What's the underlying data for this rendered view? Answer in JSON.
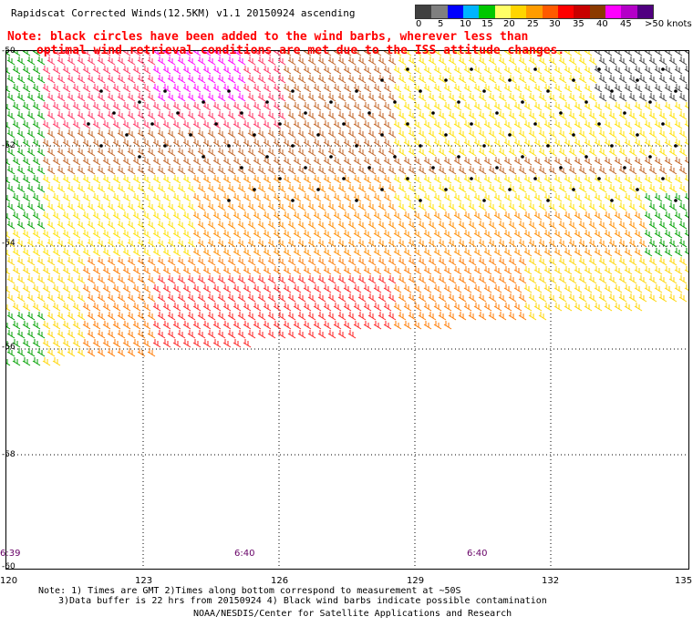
{
  "title": "Rapidscat Corrected Winds(12.5KM) v1.1 20150924 ascending",
  "note": {
    "line1": "Note: black circles have been added to the wind barbs, wherever less than",
    "line2": "optimal wind retrieval conditions are met due to the ISS attitude changes."
  },
  "legend": {
    "colors": [
      "#404040",
      "#7f7f7f",
      "#0000ff",
      "#00b4ff",
      "#00c800",
      "#ffff66",
      "#ffd500",
      "#ff9c00",
      "#ff5a00",
      "#ff0000",
      "#c80000",
      "#8b3a00",
      "#ff00ff",
      "#b400c8",
      "#500080"
    ],
    "labels": [
      "0",
      "5",
      "10",
      "15",
      "20",
      "25",
      "30",
      "35",
      "40",
      "45",
      ">50 knots"
    ]
  },
  "map": {
    "lat_labels": [
      "-50",
      "-52",
      "-54",
      "-56",
      "-58",
      "-60"
    ],
    "lon_labels": [
      "120",
      "123",
      "126",
      "129",
      "132",
      "135"
    ],
    "lat_range": [
      -60,
      -50
    ],
    "lon_range": [
      120,
      135
    ],
    "time_labels": [
      "6:39",
      "6:40",
      "6:40"
    ]
  },
  "footer": {
    "line1": "Note: 1) Times are GMT 2)Times along bottom correspond to measurement at ~50S",
    "line2": "3)Data buffer is 22 hrs from 20150924 4) Black wind barbs indicate possible contamination",
    "line3": "NOAA/NESDIS/Center for Satellite Applications and Research"
  }
}
